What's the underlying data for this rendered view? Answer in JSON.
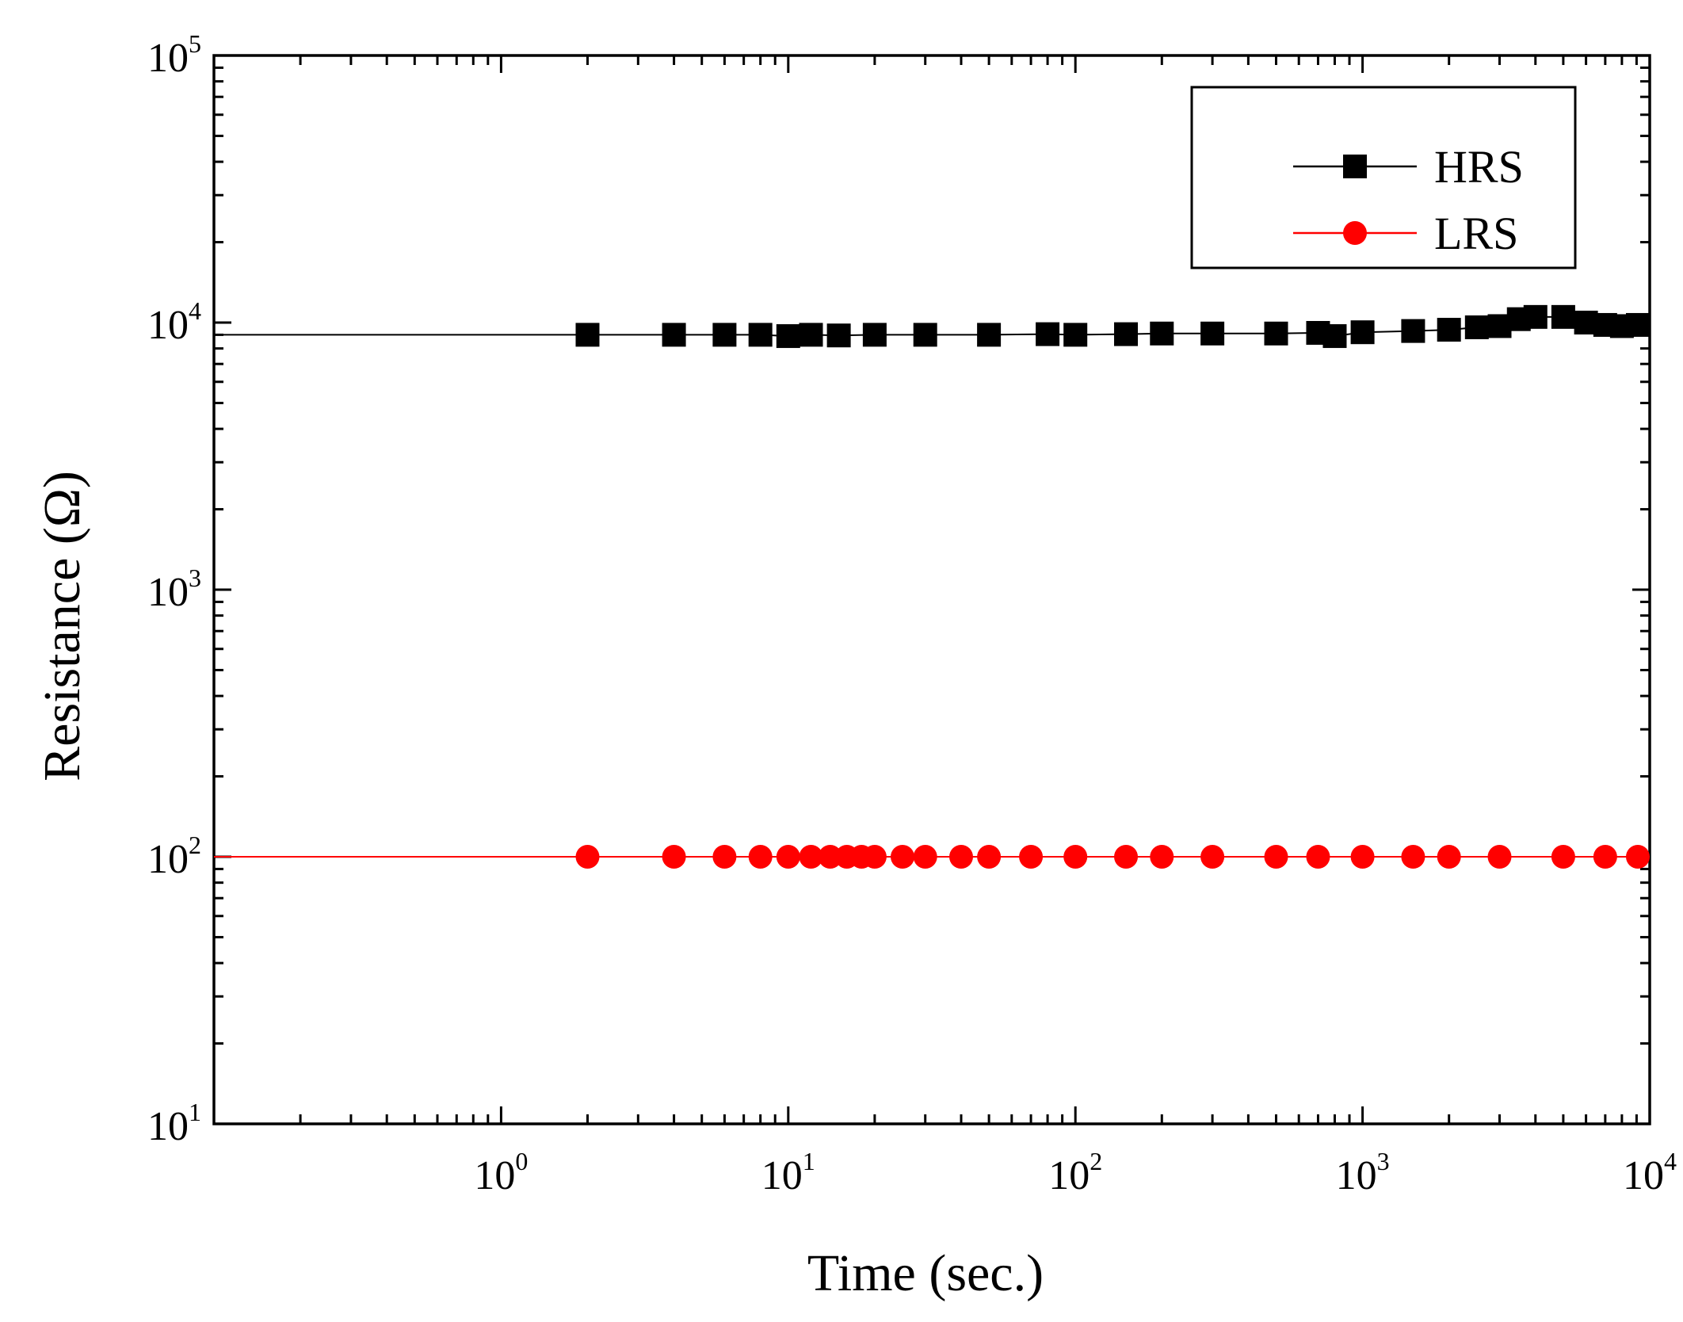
{
  "chart_data": {
    "type": "scatter",
    "xlabel": "Time (sec.)",
    "ylabel": "Resistance (Ω)",
    "x_scale": "log",
    "y_scale": "log",
    "xlim": [
      0.1,
      10000
    ],
    "ylim": [
      10,
      100000
    ],
    "x_ticks": [
      {
        "base": "10",
        "exp": "0",
        "value": 1
      },
      {
        "base": "10",
        "exp": "1",
        "value": 10
      },
      {
        "base": "10",
        "exp": "2",
        "value": 100
      },
      {
        "base": "10",
        "exp": "3",
        "value": 1000
      },
      {
        "base": "10",
        "exp": "4",
        "value": 10000
      }
    ],
    "y_ticks": [
      {
        "base": "10",
        "exp": "1",
        "value": 10
      },
      {
        "base": "10",
        "exp": "2",
        "value": 100
      },
      {
        "base": "10",
        "exp": "3",
        "value": 1000
      },
      {
        "base": "10",
        "exp": "4",
        "value": 10000
      },
      {
        "base": "10",
        "exp": "5",
        "value": 100000
      }
    ],
    "grid": false,
    "legend_position": "top-right",
    "series": [
      {
        "name": "HRS",
        "color": "#000000",
        "marker": "square",
        "line_start_x": 0.1,
        "line_start_y": 9000,
        "x": [
          2,
          4,
          6,
          8,
          10,
          12,
          15,
          20,
          30,
          50,
          80,
          100,
          150,
          200,
          300,
          500,
          700,
          800,
          1000,
          1500,
          2000,
          2500,
          3000,
          3500,
          4000,
          5000,
          6000,
          7000,
          8000,
          10000
        ],
        "y": [
          9000,
          9000,
          9000,
          9000,
          8900,
          9000,
          8950,
          9000,
          9000,
          9000,
          9050,
          9000,
          9050,
          9100,
          9100,
          9100,
          9150,
          8900,
          9200,
          9300,
          9400,
          9600,
          9700,
          10300,
          10500,
          10500,
          10000,
          9800,
          9700,
          9800
        ]
      },
      {
        "name": "LRS",
        "color": "#ff0000",
        "marker": "circle",
        "line_start_x": 0.1,
        "line_start_y": 100,
        "x": [
          2,
          4,
          6,
          8,
          10,
          12,
          14,
          16,
          18,
          20,
          25,
          30,
          40,
          50,
          70,
          100,
          150,
          200,
          300,
          500,
          700,
          1000,
          1500,
          2000,
          3000,
          5000,
          7000,
          10000
        ],
        "y": [
          100,
          100,
          100,
          100,
          100,
          100,
          100,
          100,
          100,
          100,
          100,
          100,
          100,
          100,
          100,
          100,
          100,
          100,
          100,
          100,
          100,
          100,
          100,
          100,
          100,
          100,
          100,
          100
        ]
      }
    ]
  }
}
